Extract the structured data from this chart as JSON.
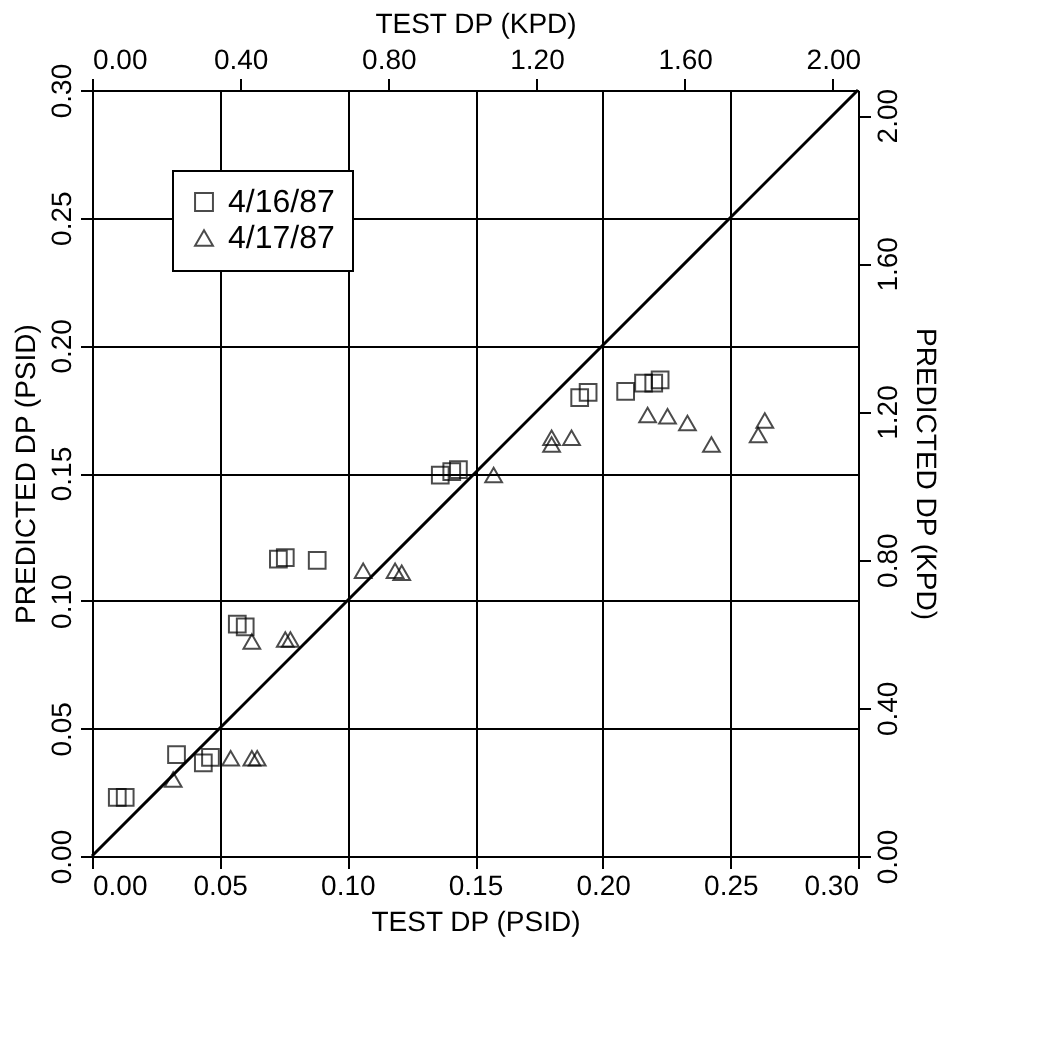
{
  "chart_data": {
    "type": "scatter",
    "xlabel": "TEST DP (PSID)",
    "ylabel": "PREDICTED DP (PSID)",
    "x2label": "TEST DP (KPD)",
    "y2label": "PREDICTED DP (KPD)",
    "xlim": [
      0,
      0.3
    ],
    "ylim": [
      0,
      0.3
    ],
    "xticks": [
      {
        "value": 0,
        "label": "0.00"
      },
      0.05,
      {
        "value": 0.1,
        "label": "0.10"
      },
      0.15,
      {
        "value": 0.2,
        "label": "0.20"
      },
      0.25,
      {
        "value": 0.3,
        "label": "0.30"
      }
    ],
    "yticks": [
      {
        "value": 0,
        "label": "0.00"
      },
      0.05,
      {
        "value": 0.1,
        "label": "0.10"
      },
      0.15,
      {
        "value": 0.2,
        "label": "0.20"
      },
      0.25,
      {
        "value": 0.3,
        "label": "0.30"
      }
    ],
    "x2lim": [
      0,
      2.068
    ],
    "y2lim": [
      0,
      2.068
    ],
    "x2ticks": [
      {
        "value": 0,
        "label": "0.00"
      },
      {
        "value": 0.4,
        "label": "0.40"
      },
      {
        "value": 0.8,
        "label": "0.80"
      },
      {
        "value": 1.2,
        "label": "1.20"
      },
      {
        "value": 1.6,
        "label": "1.60"
      },
      {
        "value": 2,
        "label": "2.00"
      }
    ],
    "y2ticks": [
      {
        "value": 0,
        "label": "0.00"
      },
      {
        "value": 0.4,
        "label": "0.40"
      },
      {
        "value": 0.8,
        "label": "0.80"
      },
      {
        "value": 1.2,
        "label": "1.20"
      },
      {
        "value": 1.6,
        "label": "1.60"
      },
      {
        "value": 2,
        "label": "2.00"
      }
    ],
    "grid": true,
    "legend": "top left",
    "series": [
      {
        "name": "4/16/87",
        "color": "#000000",
        "marker": "square",
        "x": [
          0.0099,
          0.013,
          0.0331,
          0.0436,
          0.0464,
          0.0569,
          0.06,
          0.073,
          0.0757,
          0.0882,
          0.1364,
          0.1409,
          0.1435,
          0.191,
          0.1943,
          0.209,
          0.216,
          0.22,
          0.2225
        ],
        "values": [
          0.023,
          0.023,
          0.0397,
          0.0365,
          0.0386,
          0.0908,
          0.0897,
          0.1163,
          0.1169,
          0.1158,
          0.1492,
          0.1505,
          0.1513,
          0.1795,
          0.1816,
          0.182,
          0.1852,
          0.1852,
          0.1865
        ]
      },
      {
        "name": "4/17/87",
        "color": "#000000",
        "marker": "triangle",
        "x": [
          0.0318,
          0.0543,
          0.0626,
          0.0647,
          0.0626,
          0.0757,
          0.0777,
          0.1062,
          0.1187,
          0.1213,
          0.1573,
          0.18,
          0.18,
          0.1878,
          0.2176,
          0.2254,
          0.2332,
          0.2426,
          0.2609,
          0.2635
        ],
        "values": [
          0.03,
          0.0383,
          0.0383,
          0.0383,
          0.084,
          0.0848,
          0.0848,
          0.1117,
          0.1117,
          0.1109,
          0.1492,
          0.1638,
          0.1612,
          0.1638,
          0.1727,
          0.1722,
          0.1696,
          0.1612,
          0.1649,
          0.1706
        ]
      },
      {
        "type": "line",
        "color": "#000000",
        "line_style": "solid",
        "x": [
          0,
          0.3
        ],
        "values": [
          0,
          0.3
        ]
      }
    ]
  }
}
